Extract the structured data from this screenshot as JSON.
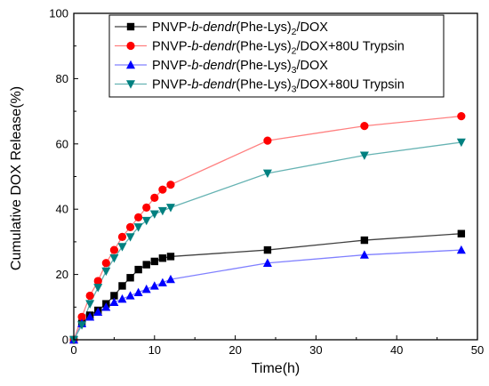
{
  "chart_data": {
    "type": "line",
    "title": "",
    "xlabel": "Time(h)",
    "ylabel": "Cumulative DOX Release(%)",
    "xlim": [
      0,
      50
    ],
    "ylim": [
      0,
      100
    ],
    "xticks": [
      0,
      10,
      20,
      30,
      40,
      50
    ],
    "yticks": [
      0,
      20,
      40,
      60,
      80,
      100
    ],
    "grid": false,
    "legend_position": "top-left",
    "series": [
      {
        "name": "PNVP-b-dendr(Phe-Lys)2/DOX",
        "legend": {
          "pre": "PNVP-",
          "it1": "b",
          "mid": "-",
          "it2": "dendr",
          "post": "(Phe-Lys)",
          "sub": "2",
          "tail": "/DOX"
        },
        "color": "#000000",
        "line_color": "#404040",
        "marker": "square",
        "x": [
          0,
          1,
          2,
          3,
          4,
          5,
          6,
          7,
          8,
          9,
          10,
          11,
          12,
          24,
          36,
          48
        ],
        "y": [
          0,
          5,
          7.5,
          9,
          11,
          13.5,
          16.5,
          19,
          21.5,
          23,
          24,
          25,
          25.5,
          27.5,
          30.5,
          32.5
        ]
      },
      {
        "name": "PNVP-b-dendr(Phe-Lys)2/DOX+80U Trypsin",
        "legend": {
          "pre": "PNVP-",
          "it1": "b",
          "mid": "-",
          "it2": "dendr",
          "post": "(Phe-Lys)",
          "sub": "2",
          "tail": "/DOX+80U Trypsin"
        },
        "color": "#ff0000",
        "line_color": "#ff8080",
        "marker": "circle",
        "x": [
          0,
          1,
          2,
          3,
          4,
          5,
          6,
          7,
          8,
          9,
          10,
          11,
          12,
          24,
          36,
          48
        ],
        "y": [
          0,
          7,
          13.5,
          18,
          23.5,
          27.5,
          31.5,
          34.5,
          37.5,
          40.5,
          43.5,
          46,
          47.5,
          61,
          65.5,
          68.5
        ]
      },
      {
        "name": "PNVP-b-dendr(Phe-Lys)3/DOX",
        "legend": {
          "pre": "PNVP-",
          "it1": "b",
          "mid": "-",
          "it2": "dendr",
          "post": "(Phe-Lys)",
          "sub": "3",
          "tail": "/DOX"
        },
        "color": "#0000ff",
        "line_color": "#8080ff",
        "marker": "triangle-up",
        "x": [
          0,
          1,
          2,
          3,
          4,
          5,
          6,
          7,
          8,
          9,
          10,
          11,
          12,
          24,
          36,
          48
        ],
        "y": [
          0,
          5,
          7,
          8.5,
          10,
          11.5,
          12.5,
          13.5,
          14.5,
          15.5,
          16.5,
          17.5,
          18.5,
          23.5,
          26,
          27.5
        ]
      },
      {
        "name": "PNVP-b-dendr(Phe-Lys)3/DOX+80U Trypsin",
        "legend": {
          "pre": "PNVP-",
          "it1": "b",
          "mid": "-",
          "it2": "dendr",
          "post": "(Phe-Lys)",
          "sub": "3",
          "tail": "/DOX+80U Trypsin"
        },
        "color": "#008080",
        "line_color": "#66b3b3",
        "marker": "triangle-down",
        "x": [
          0,
          1,
          2,
          3,
          4,
          5,
          6,
          7,
          8,
          9,
          10,
          11,
          12,
          24,
          36,
          48
        ],
        "y": [
          0,
          4.5,
          11,
          16,
          21,
          25,
          28.5,
          31.5,
          34.5,
          36.5,
          38.5,
          39.5,
          40.5,
          51,
          56.5,
          60.5
        ]
      }
    ]
  }
}
